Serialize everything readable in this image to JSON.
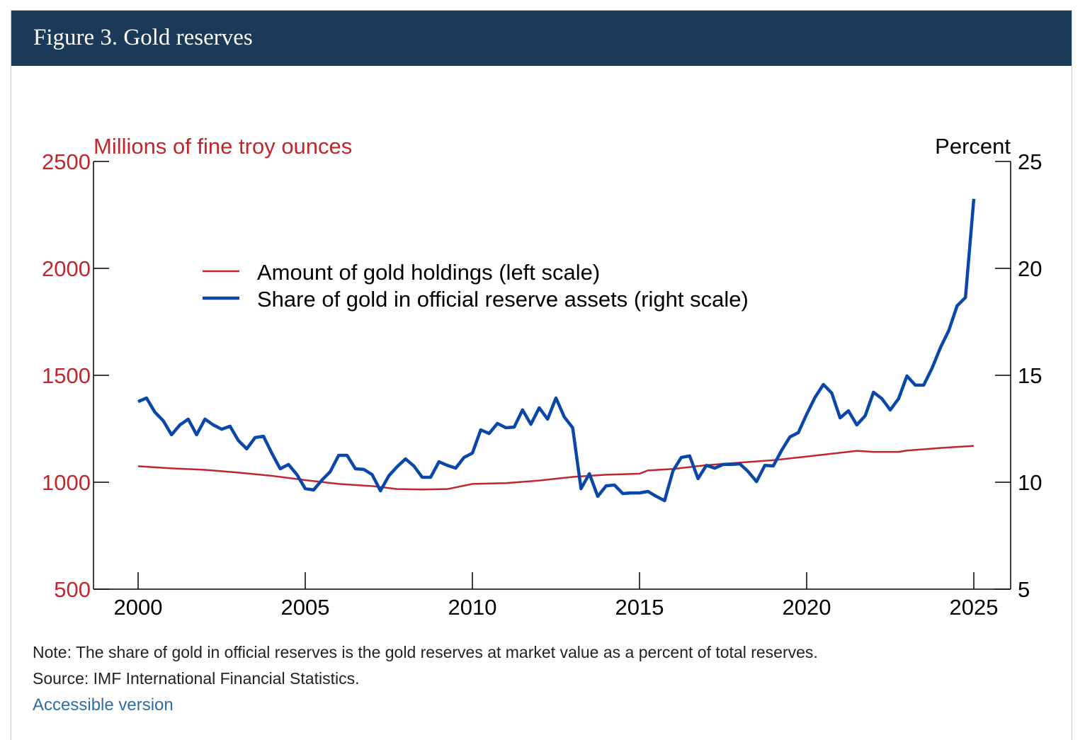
{
  "header": {
    "title": "Figure 3. Gold reserves"
  },
  "chart_data": {
    "type": "line",
    "title": "Gold reserves",
    "left_axis": {
      "label": "Millions of fine troy ounces",
      "ticks": [
        500,
        1000,
        1500,
        2000,
        2500
      ],
      "range": [
        500,
        2500
      ],
      "color": "#c0272d"
    },
    "right_axis": {
      "label": "Percent",
      "ticks": [
        5,
        10,
        15,
        20,
        25
      ],
      "range": [
        5,
        25
      ],
      "color": "#000000"
    },
    "x_axis": {
      "ticks": [
        2000,
        2005,
        2010,
        2015,
        2020,
        2025
      ],
      "range": [
        1998.7,
        2026.1
      ]
    },
    "legend": {
      "placement": "upper-center"
    },
    "series": [
      {
        "name": "Amount of gold holdings (left scale)",
        "axis": "left",
        "color": "#c0272d",
        "x": [
          2000,
          2001,
          2002,
          2003,
          2004,
          2005,
          2006,
          2007,
          2007.75,
          2008.5,
          2009.25,
          2010,
          2011,
          2012,
          2013,
          2014,
          2015,
          2015.25,
          2016,
          2017,
          2018,
          2019,
          2020,
          2021,
          2021.5,
          2022,
          2022.75,
          2023,
          2024,
          2025
        ],
        "y": [
          1075,
          1065,
          1058,
          1045,
          1030,
          1010,
          992,
          982,
          968,
          966,
          968,
          992,
          996,
          1008,
          1025,
          1035,
          1040,
          1055,
          1062,
          1080,
          1092,
          1103,
          1120,
          1138,
          1147,
          1142,
          1142,
          1148,
          1160,
          1170
        ]
      },
      {
        "name": "Share of gold in official reserve assets (right scale)",
        "axis": "right",
        "color": "#0a47a8",
        "x_start": 2000,
        "x_step": 0.25,
        "y": [
          13.77,
          13.94,
          13.28,
          12.88,
          12.22,
          12.68,
          12.95,
          12.22,
          12.95,
          12.68,
          12.48,
          12.62,
          11.95,
          11.56,
          12.09,
          12.15,
          11.36,
          10.63,
          10.83,
          10.36,
          9.7,
          9.64,
          10.1,
          10.5,
          11.26,
          11.26,
          10.63,
          10.6,
          10.36,
          9.6,
          10.3,
          10.73,
          11.09,
          10.76,
          10.23,
          10.23,
          10.96,
          10.79,
          10.66,
          11.16,
          11.36,
          12.45,
          12.28,
          12.75,
          12.55,
          12.58,
          13.38,
          12.71,
          13.48,
          12.95,
          13.94,
          13.05,
          12.55,
          9.7,
          10.4,
          9.34,
          9.83,
          9.87,
          9.47,
          9.5,
          9.5,
          9.57,
          9.34,
          9.14,
          10.53,
          11.16,
          11.23,
          10.17,
          10.79,
          10.66,
          10.83,
          10.83,
          10.86,
          10.5,
          10.03,
          10.79,
          10.76,
          11.49,
          12.12,
          12.32,
          13.18,
          13.97,
          14.57,
          14.17,
          13.01,
          13.34,
          12.68,
          13.11,
          14.21,
          13.91,
          13.38,
          13.91,
          14.97,
          14.54,
          14.54,
          15.33,
          16.29,
          17.09,
          18.25,
          18.64,
          23.25
        ]
      }
    ]
  },
  "notes": {
    "note": "Note: The share of gold in official reserves is the gold reserves at market value as a percent of total reserves.",
    "source": "Source: IMF International Financial Statistics.",
    "accessible_link": "Accessible version"
  }
}
